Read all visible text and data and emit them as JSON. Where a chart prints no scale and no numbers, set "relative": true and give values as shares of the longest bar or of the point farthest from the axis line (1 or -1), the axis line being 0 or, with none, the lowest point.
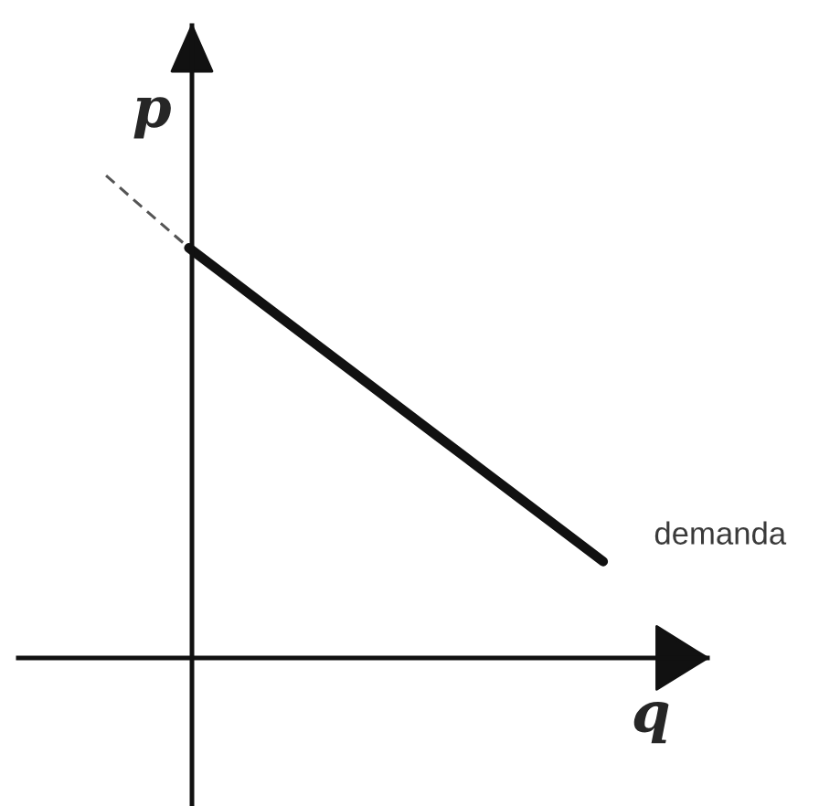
{
  "chart_data": {
    "type": "line",
    "relative": true,
    "xlabel": "q",
    "ylabel": "p",
    "categories": [
      null,
      null,
      null,
      null,
      null,
      null,
      null
    ],
    "series": [
      {
        "color": "#555555",
        "line_style": "dashed",
        "values": [
          1.0,
          0.85,
          null,
          null,
          null,
          null,
          null
        ]
      },
      {
        "name": "demanda",
        "color": "#111111",
        "line_style": "solid",
        "values": [
          null,
          0.85,
          0.72,
          0.59,
          0.46,
          0.33,
          0.2
        ]
      }
    ]
  }
}
